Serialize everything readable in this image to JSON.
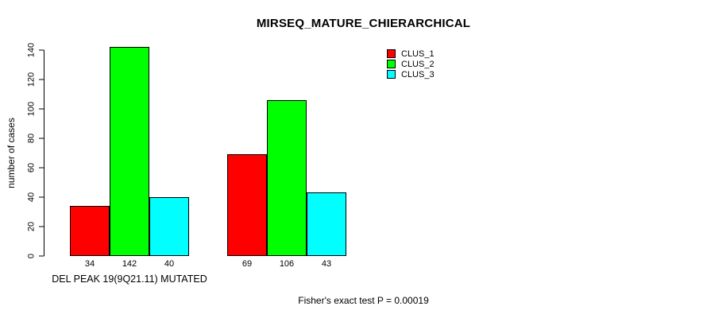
{
  "title": "MIRSEQ_MATURE_CHIERARCHICAL",
  "chart_data": {
    "type": "bar",
    "title": "MIRSEQ_MATURE_CHIERARCHICAL",
    "categories": [
      "DEL PEAK 19(9Q21.11) MUTATED",
      ""
    ],
    "series": [
      {
        "name": "CLUS_1",
        "color": "#ff0000",
        "values": [
          34,
          69
        ]
      },
      {
        "name": "CLUS_2",
        "color": "#00ff00",
        "values": [
          142,
          106
        ]
      },
      {
        "name": "CLUS_3",
        "color": "#00ffff",
        "values": [
          40,
          43
        ]
      }
    ],
    "bar_value_labels": [
      [
        34,
        142,
        40
      ],
      [
        69,
        106,
        43
      ]
    ],
    "xlabel": "DEL PEAK 19(9Q21.11) MUTATED",
    "ylabel": "number of cases",
    "ylim": [
      0,
      140
    ],
    "yticks": [
      0,
      20,
      40,
      60,
      80,
      100,
      120,
      140
    ],
    "grid": false,
    "legend_position": "top-right",
    "bar_border_color": "#000000",
    "annotation": "Fisher's exact test P = 0.00019"
  }
}
